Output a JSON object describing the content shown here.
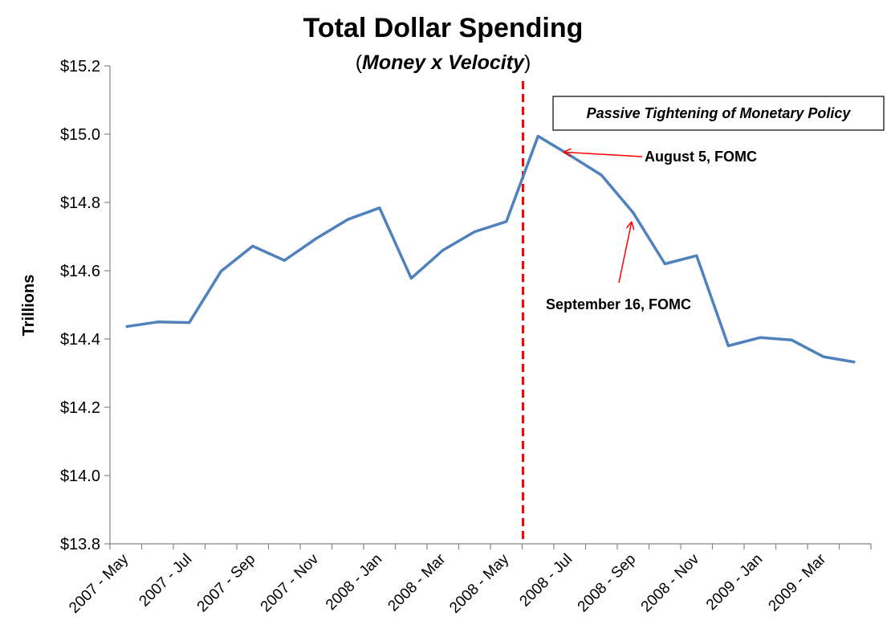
{
  "chart_data": {
    "type": "line",
    "title": "Total Dollar Spending",
    "subtitle": {
      "open": "(",
      "italic": "Money x Velocity",
      "close": ")"
    },
    "ylabel": "Trillions",
    "xlabel": "",
    "ylim": [
      13.8,
      15.2
    ],
    "yticks": [
      "$13.8",
      "$14.0",
      "$14.2",
      "$14.4",
      "$14.6",
      "$14.8",
      "$15.0",
      "$15.2"
    ],
    "ytick_values": [
      13.8,
      14.0,
      14.2,
      14.4,
      14.6,
      14.8,
      15.0,
      15.2
    ],
    "x": [
      "2007 - May",
      "2007 - Jun",
      "2007 - Jul",
      "2007 - Aug",
      "2007 - Sep",
      "2007 - Oct",
      "2007 - Nov",
      "2007 - Dec",
      "2008 - Jan",
      "2008 - Feb",
      "2008 - Mar",
      "2008 - Apr",
      "2008 - May",
      "2008 - Jun",
      "2008 - Jul",
      "2008 - Aug",
      "2008 - Sep",
      "2008 - Oct",
      "2008 - Nov",
      "2008 - Dec",
      "2009 - Jan",
      "2009 - Feb",
      "2009 - Mar",
      "2009 - Apr"
    ],
    "xtick_labels": [
      "2007 - May",
      "2007 - Jul",
      "2007 - Sep",
      "2007 - Nov",
      "2008 - Jan",
      "2008 - Mar",
      "2008 - May",
      "2008 - Jul",
      "2008 - Sep",
      "2008 - Nov",
      "2009 - Jan",
      "2009 - Mar"
    ],
    "series": [
      {
        "values": [
          14.436,
          14.45,
          14.448,
          14.598,
          14.672,
          14.63,
          14.694,
          14.75,
          14.784,
          14.578,
          14.66,
          14.714,
          14.744,
          14.994,
          14.938,
          14.88,
          14.77,
          14.62,
          14.644,
          14.38,
          14.404,
          14.397,
          14.348,
          14.332
        ],
        "color": "#4f81bd"
      }
    ],
    "vline": {
      "between": [
        "2008 - May",
        "2008 - Jun"
      ],
      "color": "#ff0000",
      "style": "dashed"
    },
    "annotations": [
      {
        "text": "August 5, FOMC",
        "point": "2008 - Jul"
      },
      {
        "text": "September 16, FOMC",
        "point": "2008 - Sep"
      }
    ],
    "box_label": "Passive Tightening of Monetary Policy",
    "grid": false,
    "legend": "none"
  }
}
